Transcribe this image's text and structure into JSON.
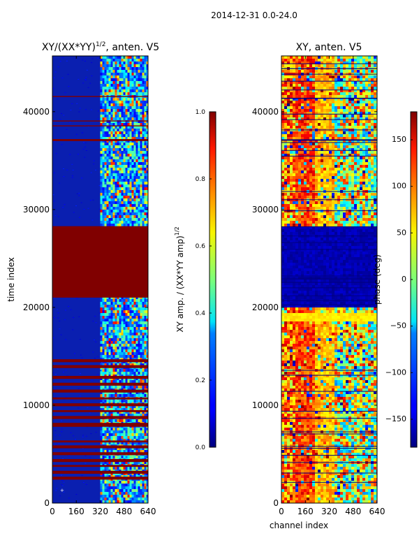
{
  "figure": {
    "suptitle": "2014-12-31 0.0-24.0"
  },
  "chart_data": [
    {
      "type": "heatmap",
      "title_main": "XY/(XX*YY)",
      "title_exp": "1/2",
      "title_tail": ", anten. V5",
      "xlabel": "",
      "ylabel": "time index",
      "xlim": [
        0,
        640
      ],
      "ylim": [
        0,
        45700
      ],
      "xticks": [
        0,
        160,
        320,
        480,
        640
      ],
      "yticks": [
        0,
        10000,
        20000,
        30000,
        40000
      ],
      "colormap": "jet",
      "bright_channel_band": [
        320,
        640
      ],
      "saturated_time_band": [
        21000,
        28300
      ],
      "saturated_row_bands": [
        [
          2400,
          2700
        ],
        [
          3000,
          3300
        ],
        [
          3700,
          3900
        ],
        [
          4200,
          4500
        ],
        [
          4900,
          5200
        ],
        [
          5600,
          5900
        ],
        [
          6200,
          6400
        ],
        [
          7800,
          8200
        ],
        [
          8600,
          8900
        ],
        [
          9300,
          9500
        ],
        [
          9900,
          10200
        ],
        [
          10600,
          10800
        ],
        [
          11300,
          11600
        ],
        [
          12000,
          12300
        ],
        [
          12700,
          13000
        ],
        [
          13800,
          14100
        ],
        [
          14400,
          14700
        ],
        [
          37000,
          37200
        ],
        [
          38500,
          38600
        ],
        [
          39000,
          39100
        ],
        [
          41500,
          41600
        ]
      ],
      "colorbar": {
        "label_main": "XY amp. / (XX*YY amp)",
        "label_exp": "1/2",
        "range": [
          0.0,
          1.0
        ],
        "ticks": [
          0.0,
          0.2,
          0.4,
          0.6,
          0.8,
          1.0
        ],
        "tick_labels": [
          "0.0",
          "0.2",
          "0.4",
          "0.6",
          "0.8",
          "1.0"
        ]
      }
    },
    {
      "type": "heatmap",
      "title": "XY, anten. V5",
      "xlabel": "channel index",
      "ylabel": "",
      "xlim": [
        0,
        640
      ],
      "ylim": [
        0,
        45700
      ],
      "xticks": [
        0,
        160,
        320,
        480,
        640
      ],
      "yticks": [
        0,
        10000,
        20000,
        30000,
        40000
      ],
      "colormap": "jet",
      "blocked_time_band": [
        20200,
        28300
      ],
      "flat_time_band": [
        18800,
        19600
      ],
      "colorbar": {
        "label": "phase (deg)",
        "range": [
          -180,
          180
        ],
        "ticks": [
          -150,
          -100,
          -50,
          0,
          50,
          100,
          150
        ],
        "tick_labels": [
          "−150",
          "−100",
          "−50",
          "0",
          "50",
          "100",
          "150"
        ]
      }
    }
  ]
}
